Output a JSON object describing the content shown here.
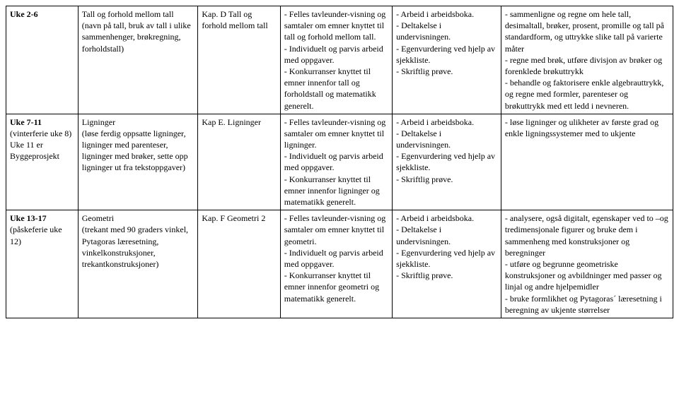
{
  "table": {
    "rows": [
      {
        "uke_bold": "Uke 2-6",
        "uke_rest": "",
        "tema": "Tall og forhold mellom tall\n(navn på tall, bruk av tall i ulike sammenhenger, brøkregning, forholdstall)",
        "kap": "Kap. D Tall og forhold mellom tall",
        "arb": "- Felles tavleunder-visning og samtaler om emner knyttet til tall og forhold mellom tall.\n- Individuelt og parvis arbeid med oppgaver.\n- Konkurranser knyttet til emner innenfor tall og forholdstall og matematikk generelt.",
        "vurd": "- Arbeid i arbeidsboka.\n- Deltakelse i undervisningen.\n- Egenvurdering ved hjelp av sjekkliste.\n- Skriftlig prøve.",
        "mal": "- sammenligne og regne om hele tall, desimaltall, brøker, prosent, promille og tall på standardform, og uttrykke slike tall på varierte måter\n- regne med brøk, utføre divisjon av brøker og forenklede brøkuttrykk\n- behandle og faktorisere enkle algebrauttrykk, og regne med formler, parenteser og brøkuttrykk med ett ledd i nevneren."
      },
      {
        "uke_bold": "Uke 7-11",
        "uke_rest": "(vinterferie uke 8)\nUke 11 er Byggeprosjekt",
        "tema": "Ligninger\n(løse ferdig oppsatte ligninger, ligninger med parenteser, ligninger med brøker, sette opp ligninger ut fra tekstoppgaver)",
        "kap": "Kap E. Ligninger",
        "arb": "- Felles tavleunder-visning og samtaler om emner knyttet til ligninger.\n- Individuelt og parvis arbeid med oppgaver.\n- Konkurranser knyttet til emner innenfor ligninger og matematikk generelt.",
        "vurd": "- Arbeid i arbeidsboka.\n- Deltakelse i undervisningen.\n- Egenvurdering ved hjelp av sjekkliste.\n- Skriftlig prøve.",
        "mal": "- løse ligninger og ulikheter av første grad og enkle ligningssystemer med to ukjente"
      },
      {
        "uke_bold": "Uke 13-17",
        "uke_rest": "(påskeferie uke 12)",
        "tema": "Geometri\n(trekant med 90 graders vinkel, Pytagoras læresetning, vinkelkonstruksjoner, trekantkonstruksjoner)",
        "kap": "Kap. F Geometri 2",
        "arb": "- Felles tavleunder-visning og samtaler om emner knyttet til geometri.\n- Individuelt og parvis arbeid med oppgaver.\n- Konkurranser knyttet til emner innenfor geometri og matematikk generelt.",
        "vurd": "- Arbeid i arbeidsboka.\n- Deltakelse i undervisningen.\n- Egenvurdering ved hjelp av sjekkliste.\n- Skriftlig prøve.",
        "mal": "- analysere, også digitalt, egenskaper ved to –og tredimensjonale figurer og bruke dem i sammenheng med konstruksjoner og beregninger\n- utføre og begrunne geometriske konstruksjoner og avbildninger med passer og linjal og andre hjelpemidler\n- bruke formlikhet og Pytagoras´ læresetning i beregning av ukjente størrelser"
      }
    ]
  }
}
